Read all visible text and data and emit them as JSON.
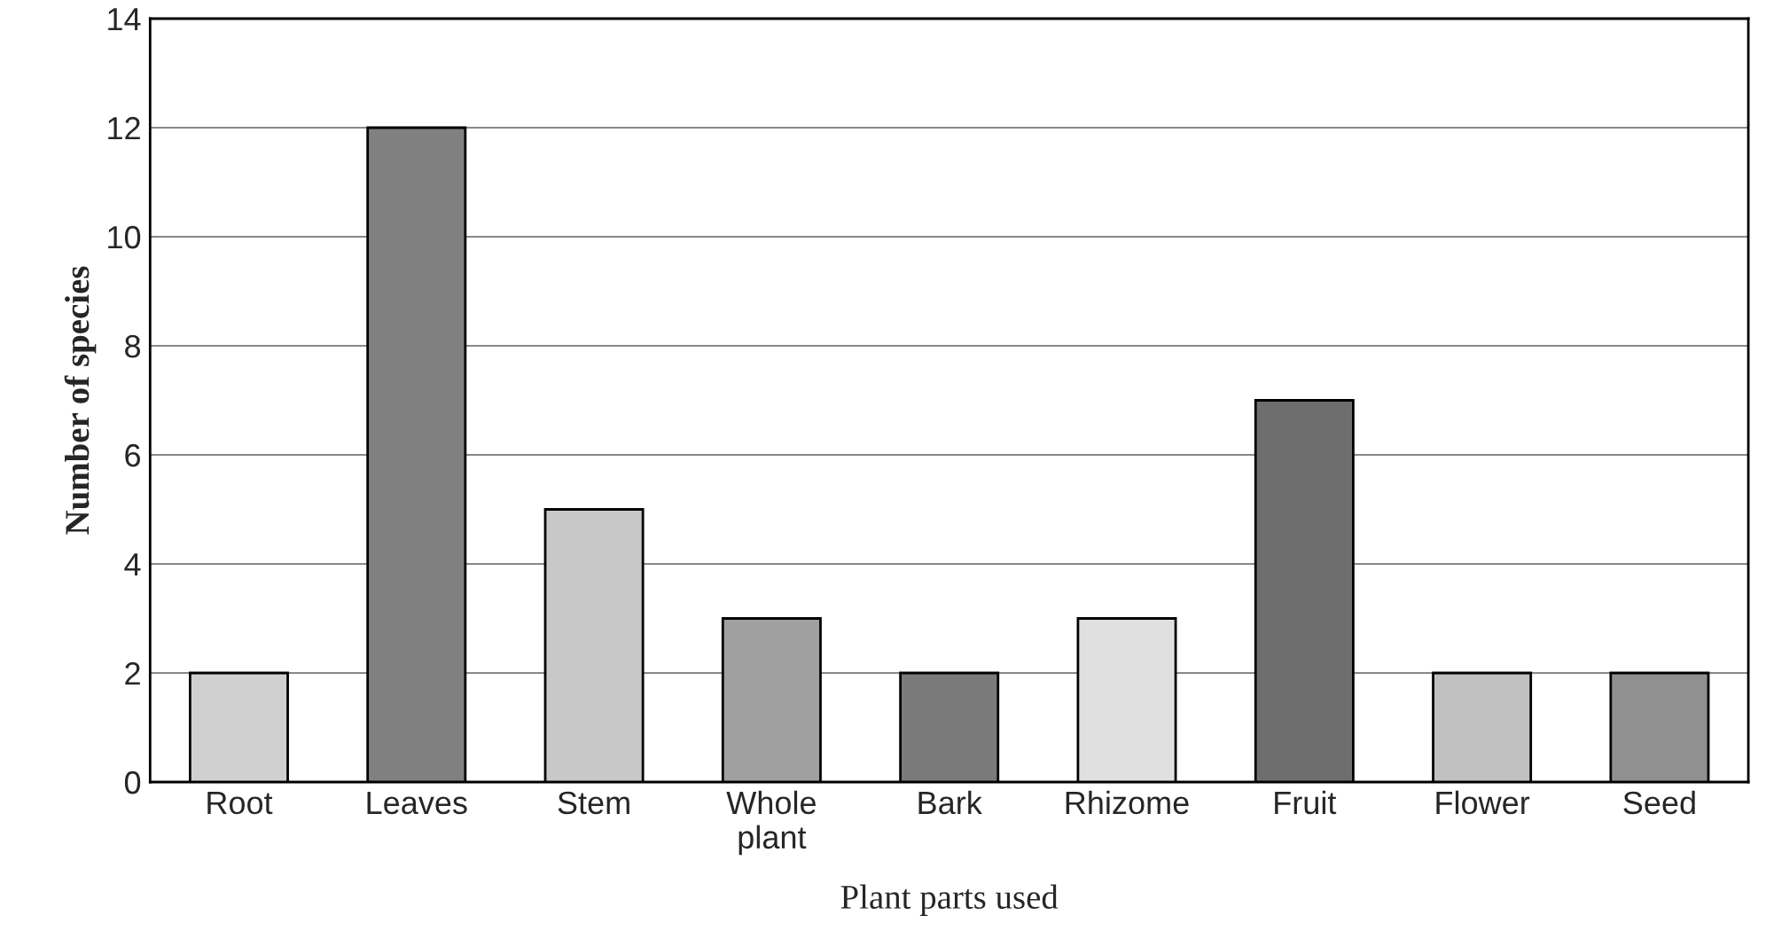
{
  "chart_data": {
    "type": "bar",
    "xlabel": "Plant parts used",
    "ylabel": "Number of species",
    "categories": [
      "Root",
      "Leaves",
      "Stem",
      "Whole plant",
      "Bark",
      "Rhizome",
      "Fruit",
      "Flower",
      "Seed"
    ],
    "values": [
      2,
      12,
      5,
      3,
      2,
      3,
      7,
      2,
      2
    ],
    "colors": [
      "#d0d0d0",
      "#808080",
      "#c8c8c8",
      "#a0a0a0",
      "#7a7a7a",
      "#e0e0e0",
      "#6e6e6e",
      "#c0c0c0",
      "#909090"
    ],
    "ylim": [
      0,
      14
    ],
    "yticks": [
      0,
      2,
      4,
      6,
      8,
      10,
      12,
      14
    ],
    "grid": "y",
    "legend": false
  }
}
